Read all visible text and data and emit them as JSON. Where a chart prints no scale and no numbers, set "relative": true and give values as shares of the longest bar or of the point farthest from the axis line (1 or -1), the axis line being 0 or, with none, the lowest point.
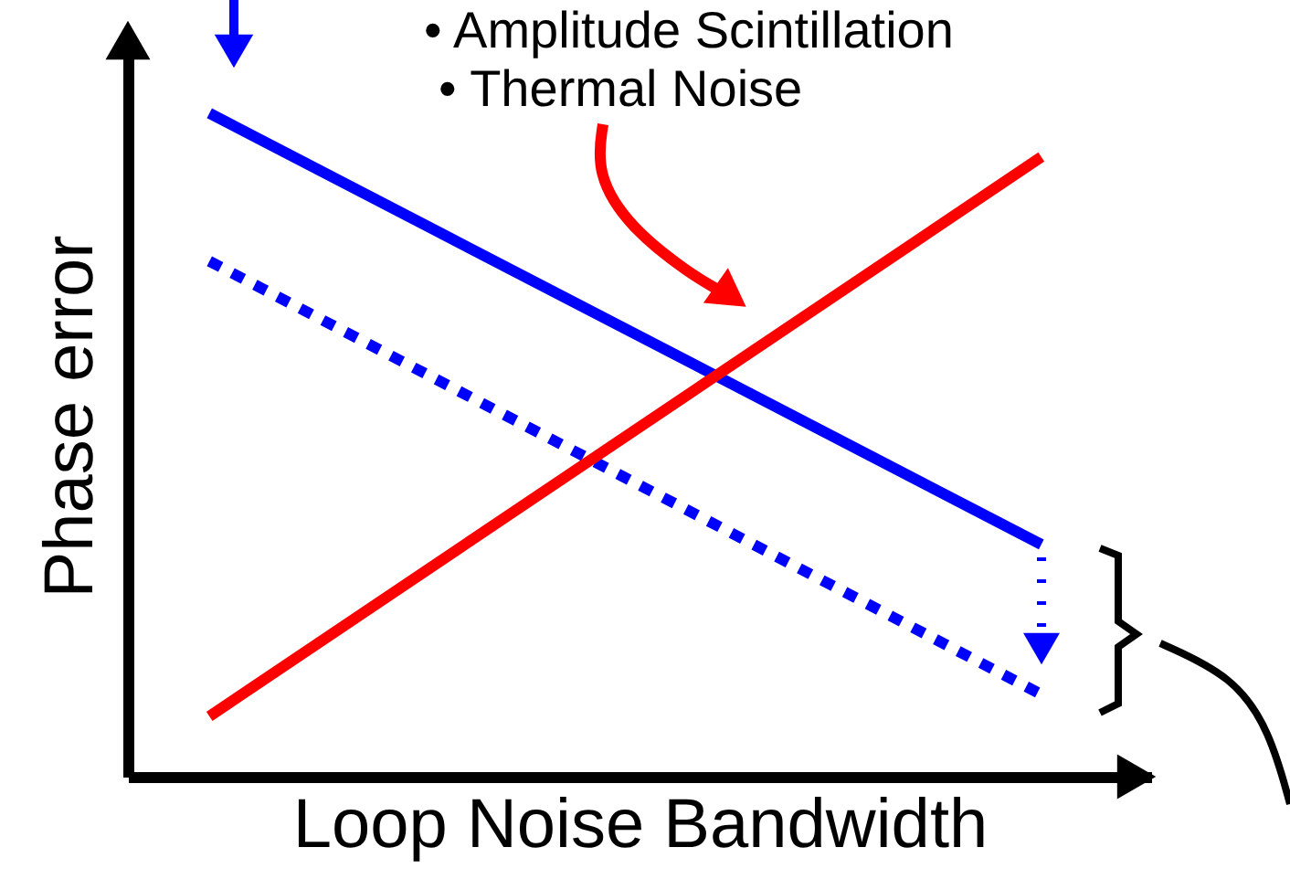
{
  "chart_data": {
    "type": "line",
    "relative": true,
    "categories": [
      null,
      null
    ],
    "xlabel": "Loop Noise Bandwidth",
    "ylabel": "Phase error",
    "grid": false,
    "annotations": [
      "• Amplitude Scintillation",
      "• Thermal Noise"
    ],
    "series": [
      {
        "color": "#0000ff",
        "values": [
          1.0,
          0.35
        ],
        "line_style": "solid"
      },
      {
        "color": "#0000ff",
        "values": [
          0.777,
          0.124
        ],
        "line_style": "dotted"
      },
      {
        "color": "#ff0000",
        "values": [
          0.091,
          0.934
        ],
        "line_style": "solid"
      }
    ]
  }
}
